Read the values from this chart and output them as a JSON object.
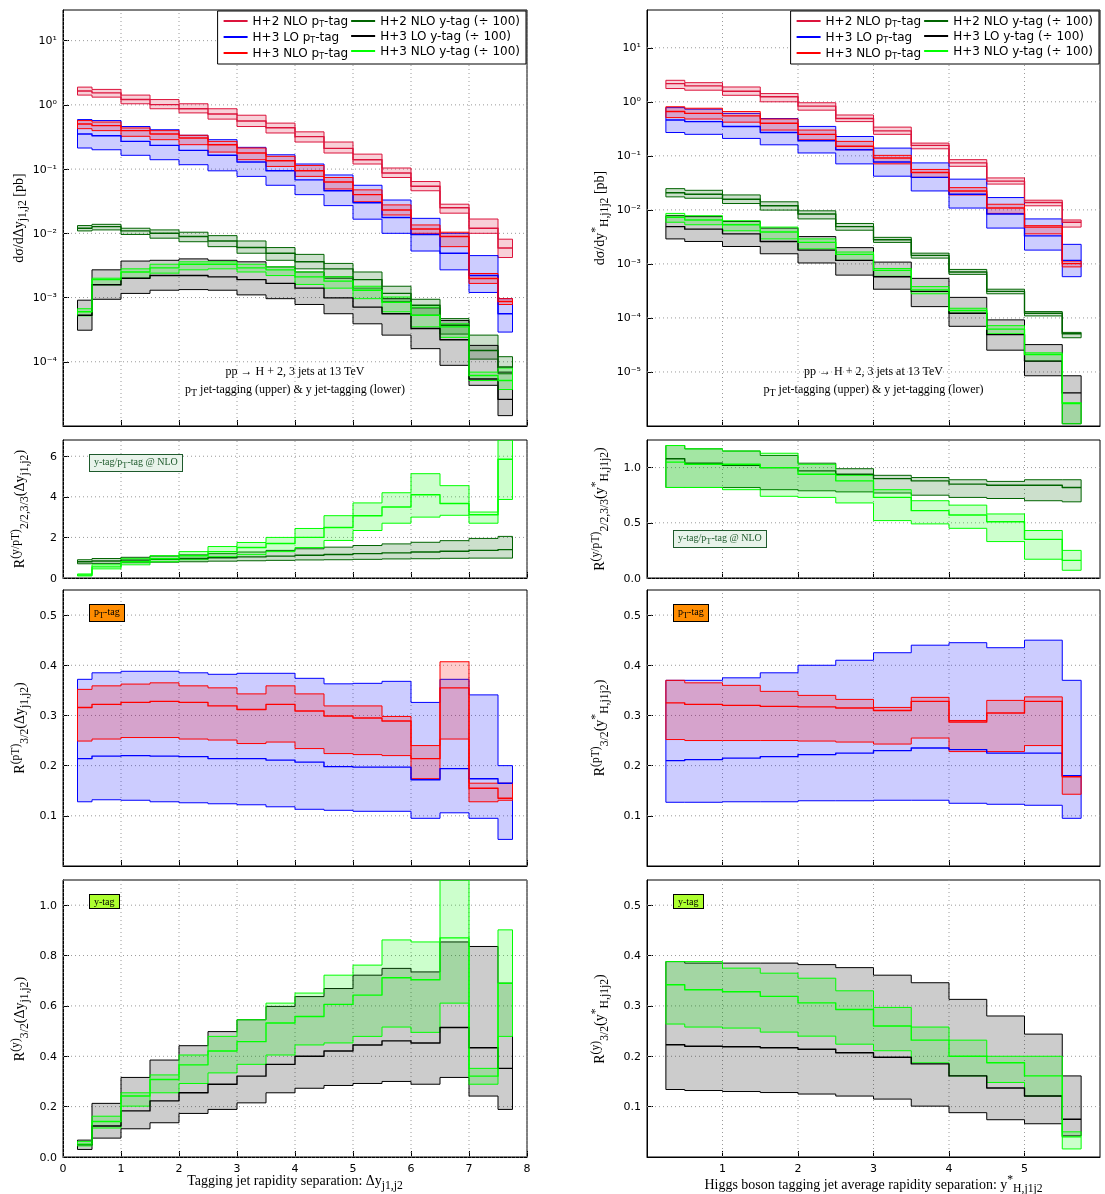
{
  "chart_data": [
    {
      "type": "step",
      "log": "y",
      "grid": true,
      "legend": "top right",
      "tick_labels": "y",
      "ylabel": "dσ/dΔy$_{j1,j2}$ [pb]",
      "annotations": [
        "pp → H + 2, 3 jets at 13 TeV",
        "p$_{T}$ jet-tagging (upper) & y jet-tagging (lower)"
      ],
      "xlim": [
        0,
        8
      ],
      "xticks": [
        0,
        1,
        2,
        3,
        4,
        5,
        6,
        7,
        8
      ],
      "ylim": [
        1e-05,
        30
      ],
      "yticks": [
        {
          "value": 0.0001,
          "label": "10⁻⁴"
        },
        {
          "value": 0.001,
          "label": "10⁻³"
        },
        {
          "value": 0.01,
          "label": "10⁻²"
        },
        {
          "value": 0.1,
          "label": "10⁻¹"
        },
        {
          "value": 1,
          "label": "10⁰"
        },
        {
          "value": 10,
          "label": "10¹"
        }
      ],
      "x": [
        0.25,
        0.75,
        1.25,
        1.75,
        2.25,
        2.75,
        3.25,
        3.75,
        4.25,
        4.75,
        5.25,
        5.75,
        6.25,
        6.75,
        7.25,
        7.75
      ],
      "series": [
        {
          "name": "H+2 NLO p$_{T}$-tag",
          "color": "#dc143c",
          "values": [
            1.64,
            1.54,
            1.21,
            1.01,
            0.87,
            0.72,
            0.56,
            0.44,
            0.32,
            0.21,
            0.14,
            0.087,
            0.054,
            0.025,
            0.012,
            0.0059
          ],
          "lower": [
            1.42,
            1.32,
            1.04,
            0.87,
            0.75,
            0.6,
            0.46,
            0.365,
            0.264,
            0.178,
            0.12,
            0.074,
            0.046,
            0.0206,
            0.01,
            0.0042
          ],
          "upper": [
            1.89,
            1.74,
            1.42,
            1.21,
            1.04,
            0.87,
            0.69,
            0.52,
            0.38,
            0.264,
            0.171,
            0.104,
            0.064,
            0.0284,
            0.0167,
            0.0081
          ]
        },
        {
          "name": "H+3 LO p$_{T}$-tag",
          "color": "#0000ff",
          "values": [
            0.352,
            0.33,
            0.27,
            0.234,
            0.196,
            0.164,
            0.129,
            0.094,
            0.068,
            0.046,
            0.03,
            0.0176,
            0.0096,
            0.0049,
            0.0022,
            0.00056
          ],
          "lower": [
            0.213,
            0.2,
            0.164,
            0.14,
            0.117,
            0.094,
            0.077,
            0.056,
            0.04,
            0.027,
            0.0166,
            0.01,
            0.0053,
            0.0027,
            0.0012,
            0.00029
          ],
          "upper": [
            0.59,
            0.57,
            0.46,
            0.41,
            0.336,
            0.287,
            0.218,
            0.167,
            0.12,
            0.081,
            0.056,
            0.033,
            0.0171,
            0.01,
            0.0045,
            0.00096
          ]
        },
        {
          "name": "H+3 NLO p$_{T}$-tag",
          "color": "#ff0000",
          "values": [
            0.505,
            0.475,
            0.397,
            0.352,
            0.305,
            0.24,
            0.178,
            0.135,
            0.094,
            0.063,
            0.04,
            0.0231,
            0.0117,
            0.0089,
            0.00198,
            0.00087
          ],
          "lower": [
            0.426,
            0.397,
            0.324,
            0.287,
            0.24,
            0.184,
            0.14,
            0.11,
            0.077,
            0.049,
            0.031,
            0.0193,
            0.01,
            0.0062,
            0.00166,
            0.00078
          ],
          "upper": [
            0.57,
            0.54,
            0.437,
            0.397,
            0.336,
            0.27,
            0.213,
            0.158,
            0.114,
            0.074,
            0.0475,
            0.0277,
            0.0135,
            0.0104,
            0.00237,
            0.00096
          ]
        },
        {
          "name": "H+2 NLO y-tag (÷ 100)",
          "color": "#006400",
          "values": [
            0.012,
            0.0127,
            0.0109,
            0.01,
            0.0089,
            0.0076,
            0.006,
            0.0049,
            0.0036,
            0.0028,
            0.0019,
            0.00116,
            0.00076,
            0.00037,
            0.00015,
            8.3e-05
          ],
          "lower": [
            0.0109,
            0.0113,
            0.0096,
            0.0084,
            0.0074,
            0.0062,
            0.0049,
            0.0038,
            0.0028,
            0.0021,
            0.0014,
            0.00086,
            0.00053,
            0.00027,
            0.00011,
            6.5e-05
          ],
          "upper": [
            0.0132,
            0.0138,
            0.012,
            0.0113,
            0.0104,
            0.0092,
            0.0076,
            0.006,
            0.0047,
            0.0034,
            0.0025,
            0.0015,
            0.00094,
            0.00047,
            0.00026,
            0.00012
          ]
        },
        {
          "name": "H+3 LO y-tag (÷ 100)",
          "color": "#000000",
          "values": [
            0.00053,
            0.00158,
            0.002,
            0.0022,
            0.0022,
            0.0021,
            0.0019,
            0.00166,
            0.0014,
            0.00099,
            0.00071,
            0.00056,
            0.00033,
            0.00022,
            5.4e-05,
            2.6e-05
          ],
          "lower": [
            0.00031,
            0.00094,
            0.00116,
            0.0013,
            0.00133,
            0.0013,
            0.0011,
            0.00096,
            0.00078,
            0.00056,
            0.00039,
            0.00026,
            0.00016,
            8.8e-05,
            4.3e-05,
            1.45e-05
          ],
          "upper": [
            0.00091,
            0.0027,
            0.0037,
            0.0038,
            0.004,
            0.0038,
            0.0036,
            0.003,
            0.0025,
            0.002,
            0.0013,
            0.00096,
            0.00069,
            0.00044,
            0.00018,
            6.9e-05
          ]
        },
        {
          "name": "H+3 NLO y-tag (÷ 100)",
          "color": "#00ff00",
          "values": [
            0.0006,
            0.0019,
            0.0025,
            0.0029,
            0.0033,
            0.0033,
            0.0029,
            0.0027,
            0.0021,
            0.0018,
            0.0013,
            0.00084,
            0.00053,
            0.00035,
            6.1e-05,
            5.1e-05
          ],
          "lower": [
            0.00052,
            0.00158,
            0.002,
            0.0024,
            0.0027,
            0.0028,
            0.0025,
            0.0022,
            0.0016,
            0.0014,
            0.00096,
            0.0006,
            0.00035,
            0.00024,
            5.1e-05,
            3.7e-05
          ],
          "upper": [
            0.00067,
            0.002,
            0.0028,
            0.0033,
            0.0036,
            0.0036,
            0.0033,
            0.003,
            0.0025,
            0.0021,
            0.0015,
            0.00102,
            0.00071,
            0.00039,
            6.9e-05,
            8e-05
          ]
        }
      ]
    },
    {
      "type": "step",
      "log": "y",
      "grid": true,
      "legend": "top right",
      "tick_labels": "y",
      "ylabel": "dσ/dy$^{*}$$_{H,j1j2}$ [pb]",
      "annotations": [
        "pp → H + 2, 3 jets at 13 TeV",
        "p$_{T}$ jet-tagging (upper) & y jet-tagging (lower)"
      ],
      "xlim": [
        0,
        6
      ],
      "xticks": [
        1,
        2,
        3,
        4,
        5
      ],
      "ylim": [
        1e-06,
        50
      ],
      "yticks": [
        {
          "value": 1e-05,
          "label": "10⁻⁵"
        },
        {
          "value": 0.0001,
          "label": "10⁻⁴"
        },
        {
          "value": 0.001,
          "label": "10⁻³"
        },
        {
          "value": 0.01,
          "label": "10⁻²"
        },
        {
          "value": 0.1,
          "label": "10⁻¹"
        },
        {
          "value": 1,
          "label": "10⁰"
        },
        {
          "value": 10,
          "label": "10¹"
        }
      ],
      "x": [
        0.25,
        0.75,
        1.25,
        1.75,
        2.25,
        2.75,
        3.25,
        3.75,
        4.25,
        4.75,
        5.25,
        5.75
      ],
      "series": [
        {
          "name": "H+2 NLO p$_{T}$-tag",
          "color": "#dc143c",
          "values": [
            2.17,
            1.97,
            1.57,
            1.24,
            0.83,
            0.49,
            0.29,
            0.156,
            0.074,
            0.034,
            0.0137,
            0.0059
          ],
          "lower": [
            1.76,
            1.64,
            1.32,
            1.0,
            0.7,
            0.43,
            0.25,
            0.135,
            0.064,
            0.03,
            0.0119,
            0.0048
          ],
          "upper": [
            2.5,
            2.26,
            1.88,
            1.42,
            0.96,
            0.57,
            0.34,
            0.172,
            0.085,
            0.039,
            0.0151,
            0.0065
          ]
        },
        {
          "name": "H+3 LO p$_{T}$-tag",
          "color": "#0000ff",
          "values": [
            0.46,
            0.43,
            0.35,
            0.27,
            0.19,
            0.13,
            0.077,
            0.04,
            0.0194,
            0.0084,
            0.0033,
            0.00116
          ],
          "lower": [
            0.27,
            0.25,
            0.21,
            0.16,
            0.113,
            0.071,
            0.042,
            0.0224,
            0.0108,
            0.0046,
            0.0018,
            0.00058
          ],
          "upper": [
            0.78,
            0.73,
            0.61,
            0.49,
            0.35,
            0.228,
            0.139,
            0.074,
            0.037,
            0.0169,
            0.0068,
            0.0023
          ]
        },
        {
          "name": "H+3 NLO p$_{T}$-tag",
          "color": "#ff0000",
          "values": [
            0.66,
            0.61,
            0.55,
            0.4,
            0.25,
            0.15,
            0.091,
            0.049,
            0.0224,
            0.0108,
            0.0048,
            0.00101
          ],
          "lower": [
            0.51,
            0.48,
            0.42,
            0.3,
            0.198,
            0.13,
            0.071,
            0.04,
            0.0189,
            0.0086,
            0.0036,
            0.00088
          ],
          "upper": [
            0.81,
            0.76,
            0.66,
            0.48,
            0.3,
            0.185,
            0.102,
            0.056,
            0.0258,
            0.0127,
            0.0051,
            0.00113
          ]
        },
        {
          "name": "H+2 NLO y-tag (÷ 100)",
          "color": "#006400",
          "values": [
            0.0208,
            0.0194,
            0.0157,
            0.0119,
            0.0084,
            0.0049,
            0.0028,
            0.00144,
            0.00071,
            0.00031,
            0.000122,
            5.1e-05
          ],
          "lower": [
            0.0174,
            0.0164,
            0.0131,
            0.0099,
            0.0068,
            0.0042,
            0.0025,
            0.00128,
            0.00064,
            0.00028,
            0.000109,
            4.3e-05
          ],
          "upper": [
            0.0247,
            0.023,
            0.0189,
            0.0141,
            0.0096,
            0.0056,
            0.0031,
            0.00158,
            0.00079,
            0.00034,
            0.000131,
            5.4e-05
          ]
        },
        {
          "name": "H+3 LO y-tag (÷ 100)",
          "color": "#000000",
          "values": [
            0.0049,
            0.0044,
            0.0036,
            0.0026,
            0.0018,
            0.00116,
            0.00058,
            0.00031,
            0.000122,
            4.9e-05,
            1.59e-05,
            4.1e-06
          ],
          "lower": [
            0.0029,
            0.0026,
            0.0021,
            0.00154,
            0.00104,
            0.00062,
            0.00034,
            0.000162,
            7e-05,
            2.53e-05,
            8.5e-06,
            1.1e-06
          ],
          "upper": [
            0.0078,
            0.0075,
            0.0061,
            0.0046,
            0.0032,
            0.002,
            0.00108,
            0.00054,
            0.00024,
            9.2e-05,
            3.21e-05,
            8.5e-06
          ]
        },
        {
          "name": "H+3 NLO y-tag (÷ 100)",
          "color": "#00ff00",
          "values": [
            0.0073,
            0.0065,
            0.0053,
            0.0039,
            0.0025,
            0.0015,
            0.00076,
            0.00033,
            0.000137,
            6.2e-05,
            2.11e-05,
            2.6e-06
          ],
          "lower": [
            0.0059,
            0.0053,
            0.0041,
            0.0029,
            0.0019,
            0.00116,
            0.00059,
            0.00028,
            0.000122,
            5.1e-05,
            1.59e-05,
            1.1e-06
          ],
          "upper": [
            0.0086,
            0.0078,
            0.0063,
            0.0048,
            0.0029,
            0.00166,
            0.00082,
            0.00038,
            0.000151,
            7.2e-05,
            2.26e-05,
            2.7e-06
          ]
        }
      ]
    },
    {
      "type": "step",
      "grid": true,
      "tick_labels": "y",
      "ylabel": "R$^{(y/pT)}$$_{2/2,3/3}$(Δy$_{j1,j2}$)",
      "annotations": [
        "y-tag/p$_{T}$-tag @ NLO"
      ],
      "xlim": [
        0,
        8
      ],
      "xticks": [
        0,
        1,
        2,
        3,
        4,
        5,
        6,
        7,
        8
      ],
      "ylim": [
        0,
        6.8
      ],
      "yticks": [
        0,
        2,
        4,
        6
      ],
      "x": [
        0.25,
        0.75,
        1.25,
        1.75,
        2.25,
        2.75,
        3.25,
        3.75,
        4.25,
        4.75,
        5.25,
        5.75,
        6.25,
        6.75,
        7.25,
        7.75
      ],
      "series": [
        {
          "color": "#006400",
          "values": [
            0.8,
            0.84,
            0.88,
            0.92,
            0.96,
            1.0,
            1.04,
            1.08,
            1.12,
            1.16,
            1.2,
            1.24,
            1.28,
            1.32,
            1.36,
            1.4
          ],
          "lower": [
            0.7,
            0.72,
            0.75,
            0.78,
            0.8,
            0.83,
            0.85,
            0.87,
            0.89,
            0.9,
            0.92,
            0.94,
            0.95,
            0.97,
            0.98,
            0.98
          ],
          "upper": [
            0.9,
            0.96,
            1.02,
            1.08,
            1.14,
            1.2,
            1.28,
            1.36,
            1.44,
            1.52,
            1.6,
            1.68,
            1.76,
            1.84,
            1.95,
            2.05
          ]
        },
        {
          "color": "#00ff00",
          "values": [
            0.15,
            0.55,
            0.8,
            0.95,
            1.1,
            1.3,
            1.5,
            1.7,
            2.0,
            2.49,
            3.07,
            3.5,
            4.1,
            3.67,
            3.12,
            5.85
          ],
          "lower": [
            0.1,
            0.45,
            0.65,
            0.8,
            0.9,
            1.05,
            1.15,
            1.3,
            1.5,
            1.85,
            2.34,
            2.7,
            3.0,
            3.09,
            2.7,
            3.87
          ],
          "upper": [
            0.2,
            0.65,
            0.95,
            1.1,
            1.3,
            1.55,
            1.75,
            2.0,
            2.44,
            3.07,
            3.7,
            4.2,
            5.14,
            4.55,
            3.25,
            6.8
          ]
        }
      ]
    },
    {
      "type": "step",
      "grid": true,
      "tick_labels": "y",
      "ylabel": "R$^{(y/pT)}$$_{2/2,3/3}$(y$^{*}$$_{H,j1j2}$)",
      "annotations": [
        "y-tag/p$_{T}$-tag @ NLO"
      ],
      "xlim": [
        0,
        6
      ],
      "xticks": [
        1,
        2,
        3,
        4,
        5
      ],
      "ylim": [
        0,
        1.25
      ],
      "yticks": [
        {
          "value": 0,
          "label": "0.0"
        },
        {
          "value": 0.5,
          "label": "0.5"
        },
        {
          "value": 1,
          "label": "1.0"
        }
      ],
      "x": [
        0.25,
        0.75,
        1.25,
        1.75,
        2.25,
        2.75,
        3.25,
        3.75,
        4.25,
        4.75,
        5.25,
        5.75
      ],
      "series": [
        {
          "color": "#006400",
          "values": [
            1.08,
            1.04,
            1.02,
            1.0,
            0.97,
            0.94,
            0.9,
            0.88,
            0.85,
            0.84,
            0.84,
            0.82
          ],
          "lower": [
            0.82,
            0.82,
            0.82,
            0.8,
            0.79,
            0.78,
            0.77,
            0.75,
            0.73,
            0.72,
            0.7,
            0.69
          ],
          "upper": [
            1.2,
            1.17,
            1.15,
            1.11,
            1.04,
            0.99,
            0.93,
            0.91,
            0.89,
            0.875,
            0.89,
            0.89
          ]
        },
        {
          "color": "#00ff00",
          "values": [
            1.05,
            1.03,
            1.03,
            1.0,
            0.94,
            0.88,
            0.73,
            0.61,
            0.57,
            0.51,
            0.35,
            0.16
          ],
          "lower": [
            0.82,
            0.82,
            0.8,
            0.74,
            0.73,
            0.68,
            0.52,
            0.49,
            0.45,
            0.33,
            0.17,
            0.07
          ],
          "upper": [
            1.2,
            1.17,
            1.15,
            1.13,
            1.03,
            0.93,
            0.8,
            0.7,
            0.66,
            0.58,
            0.43,
            0.25
          ]
        }
      ]
    },
    {
      "type": "step",
      "grid": true,
      "tick_labels": "y",
      "ylabel": "R$^{(pT)}$$_{3/2}$(Δy$_{j1,j2}$)",
      "annotations": [
        "p$_{T}$-tag"
      ],
      "xlim": [
        0,
        8
      ],
      "xticks": [
        0,
        1,
        2,
        3,
        4,
        5,
        6,
        7,
        8
      ],
      "ylim": [
        0,
        0.55
      ],
      "yticks": [
        0.1,
        0.2,
        0.3,
        0.4,
        0.5
      ],
      "x": [
        0.25,
        0.75,
        1.25,
        1.75,
        2.25,
        2.75,
        3.25,
        3.75,
        4.25,
        4.75,
        5.25,
        5.75,
        6.25,
        6.75,
        7.25,
        7.75
      ],
      "series": [
        {
          "color": "#0000ff",
          "values": [
            0.214,
            0.219,
            0.22,
            0.219,
            0.218,
            0.214,
            0.214,
            0.211,
            0.207,
            0.198,
            0.197,
            0.197,
            0.172,
            0.194,
            0.174,
            0.165
          ],
          "lower": [
            0.128,
            0.132,
            0.131,
            0.128,
            0.126,
            0.124,
            0.122,
            0.118,
            0.113,
            0.111,
            0.109,
            0.109,
            0.095,
            0.106,
            0.095,
            0.053
          ],
          "upper": [
            0.372,
            0.385,
            0.388,
            0.388,
            0.385,
            0.382,
            0.384,
            0.384,
            0.374,
            0.363,
            0.364,
            0.368,
            0.326,
            0.372,
            0.341,
            0.2
          ]
        },
        {
          "color": "#ff0000",
          "values": [
            0.316,
            0.322,
            0.326,
            0.328,
            0.326,
            0.319,
            0.312,
            0.322,
            0.309,
            0.299,
            0.295,
            0.289,
            0.214,
            0.355,
            0.155,
            0.135
          ],
          "lower": [
            0.249,
            0.253,
            0.256,
            0.256,
            0.253,
            0.251,
            0.244,
            0.247,
            0.234,
            0.224,
            0.222,
            0.22,
            0.174,
            0.253,
            0.128,
            0.131
          ],
          "upper": [
            0.352,
            0.359,
            0.3625,
            0.365,
            0.359,
            0.355,
            0.343,
            0.359,
            0.343,
            0.319,
            0.319,
            0.298,
            0.24,
            0.407,
            0.165,
            0.165
          ]
        }
      ]
    },
    {
      "type": "step",
      "grid": true,
      "tick_labels": "y",
      "ylabel": "R$^{(pT)}$$_{3/2}$(y$^{*}$$_{H,j1j2}$)",
      "annotations": [
        "p$_{T}$-tag"
      ],
      "xlim": [
        0,
        6
      ],
      "xticks": [
        1,
        2,
        3,
        4,
        5
      ],
      "ylim": [
        0,
        0.55
      ],
      "yticks": [
        0.1,
        0.2,
        0.3,
        0.4,
        0.5
      ],
      "x": [
        0.25,
        0.75,
        1.25,
        1.75,
        2.25,
        2.75,
        3.25,
        3.75,
        4.25,
        4.75,
        5.25,
        5.75
      ],
      "series": [
        {
          "color": "#0000ff",
          "values": [
            0.21,
            0.212,
            0.215,
            0.218,
            0.222,
            0.225,
            0.23,
            0.235,
            0.232,
            0.225,
            0.225,
            0.18
          ],
          "lower": [
            0.127,
            0.127,
            0.128,
            0.128,
            0.13,
            0.13,
            0.131,
            0.131,
            0.125,
            0.123,
            0.121,
            0.095
          ],
          "upper": [
            0.37,
            0.37,
            0.375,
            0.385,
            0.4,
            0.41,
            0.425,
            0.44,
            0.445,
            0.435,
            0.45,
            0.37
          ]
        },
        {
          "color": "#ff0000",
          "values": [
            0.325,
            0.322,
            0.32,
            0.318,
            0.317,
            0.315,
            0.31,
            0.328,
            0.287,
            0.305,
            0.328,
            0.178
          ],
          "lower": [
            0.252,
            0.25,
            0.25,
            0.25,
            0.249,
            0.247,
            0.243,
            0.255,
            0.228,
            0.228,
            0.24,
            0.143
          ],
          "upper": [
            0.37,
            0.365,
            0.36,
            0.348,
            0.34,
            0.332,
            0.316,
            0.336,
            0.29,
            0.33,
            0.337,
            0.18
          ]
        }
      ]
    },
    {
      "type": "step",
      "grid": true,
      "ylabel": "R$^{(y)}$$_{3/2}$(Δy$_{j1,j2}$)",
      "xlabel": "Tagging jet rapidity separation:  Δy$_{j1,j2}$",
      "annotations": [
        "y-tag"
      ],
      "xlim": [
        0,
        8
      ],
      "xticks": [
        0,
        1,
        2,
        3,
        4,
        5,
        6,
        7,
        8
      ],
      "ylim": [
        0,
        1.1
      ],
      "yticks": [
        {
          "value": 0,
          "label": "0.0"
        },
        {
          "value": 0.2,
          "label": "0.2"
        },
        {
          "value": 0.4,
          "label": "0.4"
        },
        {
          "value": 0.6,
          "label": "0.6"
        },
        {
          "value": 0.8,
          "label": "0.8"
        },
        {
          "value": 1,
          "label": "1.0"
        }
      ],
      "x": [
        0.25,
        0.75,
        1.25,
        1.75,
        2.25,
        2.75,
        3.25,
        3.75,
        4.25,
        4.75,
        5.25,
        5.75,
        6.25,
        6.75,
        7.25,
        7.75
      ],
      "series": [
        {
          "color": "#000000",
          "values": [
            0.049,
            0.123,
            0.183,
            0.223,
            0.255,
            0.289,
            0.321,
            0.368,
            0.4,
            0.421,
            0.445,
            0.461,
            0.453,
            0.514,
            0.434,
            0.352
          ],
          "lower": [
            0.03,
            0.075,
            0.112,
            0.136,
            0.173,
            0.189,
            0.215,
            0.255,
            0.273,
            0.284,
            0.292,
            0.3,
            0.289,
            0.316,
            0.242,
            0.189
          ],
          "upper": [
            0.067,
            0.213,
            0.316,
            0.385,
            0.442,
            0.498,
            0.545,
            0.598,
            0.637,
            0.669,
            0.722,
            0.749,
            0.735,
            0.854,
            0.836,
            0.69
          ]
        },
        {
          "color": "#00ff00",
          "values": [
            0.051,
            0.141,
            0.242,
            0.308,
            0.366,
            0.421,
            0.458,
            0.532,
            0.558,
            0.606,
            0.643,
            0.712,
            0.704,
            0.87,
            0.321,
            0.69
          ],
          "lower": [
            0.044,
            0.115,
            0.202,
            0.255,
            0.292,
            0.334,
            0.368,
            0.405,
            0.445,
            0.453,
            0.479,
            0.516,
            0.495,
            0.611,
            0.289,
            0.479
          ],
          "upper": [
            0.062,
            0.162,
            0.255,
            0.326,
            0.405,
            0.479,
            0.545,
            0.611,
            0.651,
            0.722,
            0.762,
            0.862,
            0.854,
            1.1,
            0.352,
            0.902
          ]
        }
      ]
    },
    {
      "type": "step",
      "grid": true,
      "ylabel": "R$^{(y)}$$_{3/2}$(y$^{*}$$_{H,j1j2}$)",
      "xlabel": "Higgs boson tagging jet average rapidity separation:  y$^{*}$$_{H,j1j2}$",
      "annotations": [
        "y-tag"
      ],
      "xlim": [
        0,
        6
      ],
      "xticks": [
        1,
        2,
        3,
        4,
        5
      ],
      "ylim": [
        0,
        0.55
      ],
      "yticks": [
        0.1,
        0.2,
        0.3,
        0.4,
        0.5
      ],
      "x": [
        0.25,
        0.75,
        1.25,
        1.75,
        2.25,
        2.75,
        3.25,
        3.75,
        4.25,
        4.75,
        5.25,
        5.75
      ],
      "series": [
        {
          "color": "#000000",
          "values": [
            0.223,
            0.22,
            0.219,
            0.217,
            0.214,
            0.207,
            0.198,
            0.185,
            0.161,
            0.137,
            0.121,
            0.075
          ],
          "lower": [
            0.134,
            0.132,
            0.13,
            0.128,
            0.125,
            0.121,
            0.115,
            0.101,
            0.088,
            0.074,
            0.066,
            0.042
          ],
          "upper": [
            0.388,
            0.385,
            0.385,
            0.385,
            0.382,
            0.376,
            0.361,
            0.346,
            0.313,
            0.28,
            0.244,
            0.161
          ]
        },
        {
          "color": "#00ff00",
          "values": [
            0.342,
            0.332,
            0.328,
            0.319,
            0.306,
            0.293,
            0.26,
            0.232,
            0.2,
            0.187,
            0.161,
            0.04
          ],
          "lower": [
            0.264,
            0.258,
            0.256,
            0.248,
            0.24,
            0.224,
            0.211,
            0.187,
            0.161,
            0.148,
            0.121,
            0.016
          ],
          "upper": [
            0.388,
            0.388,
            0.375,
            0.365,
            0.355,
            0.33,
            0.297,
            0.258,
            0.232,
            0.2,
            0.2,
            0.05
          ]
        }
      ]
    }
  ]
}
